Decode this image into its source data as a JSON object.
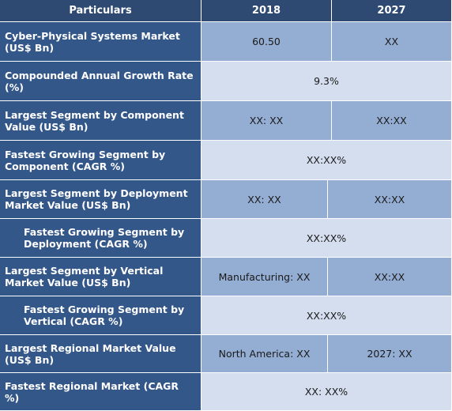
{
  "header": {
    "particulars": "Particulars",
    "y2018": "2018",
    "y2027": "2027"
  },
  "rows": [
    {
      "label": "Cyber-Physical Systems  Market (US$ Bn)",
      "v2018": "60.50",
      "v2027": "XX"
    },
    {
      "label": "Compounded Annual Growth Rate (%)",
      "merged": "9.3%"
    },
    {
      "label": "Largest Segment by Component Value (US$ Bn)",
      "v2018": "XX: XX",
      "v2027": "XX:XX"
    },
    {
      "label": "Fastest Growing Segment by Component  (CAGR %)",
      "merged": "XX:XX%"
    },
    {
      "label": "Largest Segment by Deployment Market Value (US$ Bn)",
      "v2018": "XX: XX",
      "v2027": "XX:XX"
    },
    {
      "label": "Fastest Growing Segment by Deployment (CAGR %)",
      "merged": "XX:XX%"
    },
    {
      "label": "Largest Segment by Vertical Market Value (US$ Bn)",
      "v2018": "Manufacturing: XX",
      "v2027": "XX:XX"
    },
    {
      "label": "Fastest Growing Segment by Vertical (CAGR %)",
      "merged": "XX:XX%"
    },
    {
      "label": "Largest Regional Market Value (US$ Bn)",
      "v2018": "North America: XX",
      "v2027": "2027: XX"
    },
    {
      "label": "Fastest Regional Market (CAGR %)",
      "merged": "XX: XX%"
    }
  ]
}
